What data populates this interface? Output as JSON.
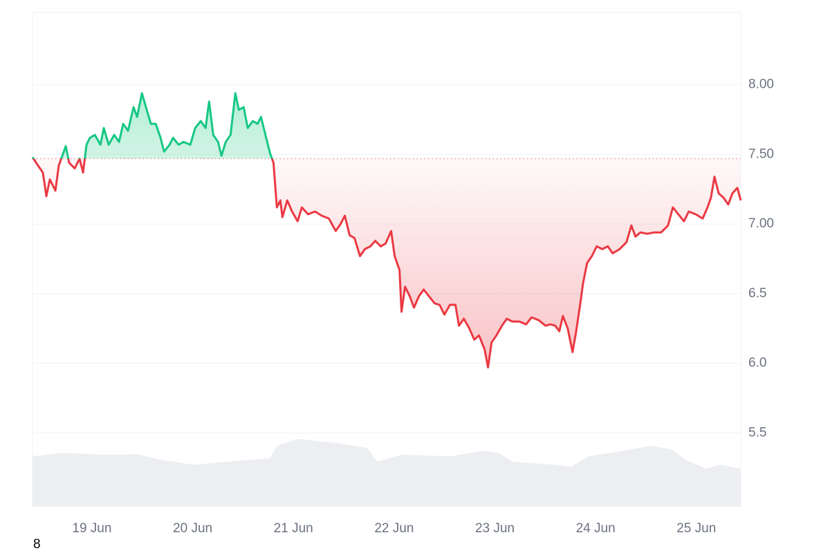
{
  "chart_data": {
    "type": "line",
    "x": [
      18.41,
      18.465,
      18.513,
      18.547,
      18.582,
      18.637,
      18.671,
      18.706,
      18.74,
      18.774,
      18.829,
      18.877,
      18.912,
      18.946,
      18.98,
      19.029,
      19.084,
      19.118,
      19.166,
      19.221,
      19.269,
      19.31,
      19.358,
      19.413,
      19.448,
      19.496,
      19.544,
      19.585,
      19.633,
      19.681,
      19.716,
      19.771,
      19.805,
      19.86,
      19.908,
      19.977,
      20.025,
      20.08,
      20.128,
      20.163,
      20.204,
      20.252,
      20.286,
      20.328,
      20.376,
      20.424,
      20.458,
      20.506,
      20.547,
      20.596,
      20.644,
      20.678,
      20.712,
      20.767,
      20.802,
      20.836,
      20.87,
      20.891,
      20.939,
      20.987,
      21.042,
      21.084,
      21.145,
      21.214,
      21.283,
      21.352,
      21.42,
      21.468,
      21.51,
      21.558,
      21.606,
      21.661,
      21.709,
      21.764,
      21.812,
      21.867,
      21.915,
      21.97,
      22.005,
      22.053,
      22.073,
      22.108,
      22.156,
      22.197,
      22.245,
      22.293,
      22.348,
      22.403,
      22.451,
      22.499,
      22.554,
      22.609,
      22.644,
      22.692,
      22.747,
      22.795,
      22.843,
      22.898,
      22.932,
      22.967,
      23.015,
      23.07,
      23.118,
      23.173,
      23.242,
      23.31,
      23.365,
      23.434,
      23.503,
      23.551,
      23.599,
      23.64,
      23.675,
      23.723,
      23.771,
      23.805,
      23.846,
      23.874,
      23.915,
      23.963,
      24.011,
      24.066,
      24.121,
      24.169,
      24.238,
      24.307,
      24.355,
      24.396,
      24.444,
      24.513,
      24.582,
      24.651,
      24.719,
      24.767,
      24.822,
      24.877,
      24.925,
      24.994,
      25.063,
      25.111,
      25.145,
      25.18,
      25.221,
      25.269,
      25.317,
      25.358,
      25.407,
      25.441
    ],
    "values": [
      7.48,
      7.42,
      7.37,
      7.2,
      7.32,
      7.24,
      7.42,
      7.49,
      7.56,
      7.44,
      7.4,
      7.47,
      7.37,
      7.57,
      7.62,
      7.64,
      7.57,
      7.69,
      7.57,
      7.64,
      7.59,
      7.72,
      7.67,
      7.84,
      7.77,
      7.94,
      7.82,
      7.72,
      7.72,
      7.62,
      7.52,
      7.57,
      7.62,
      7.57,
      7.59,
      7.57,
      7.69,
      7.74,
      7.69,
      7.88,
      7.64,
      7.59,
      7.49,
      7.59,
      7.64,
      7.94,
      7.82,
      7.84,
      7.69,
      7.74,
      7.72,
      7.77,
      7.67,
      7.51,
      7.44,
      7.12,
      7.17,
      7.05,
      7.17,
      7.09,
      7.02,
      7.12,
      7.07,
      7.09,
      7.06,
      7.04,
      6.95,
      7.0,
      7.06,
      6.92,
      6.9,
      6.77,
      6.82,
      6.84,
      6.88,
      6.84,
      6.86,
      6.95,
      6.77,
      6.67,
      6.37,
      6.55,
      6.48,
      6.4,
      6.48,
      6.53,
      6.48,
      6.43,
      6.42,
      6.35,
      6.42,
      6.42,
      6.27,
      6.32,
      6.25,
      6.17,
      6.2,
      6.1,
      5.97,
      6.15,
      6.2,
      6.27,
      6.32,
      6.3,
      6.3,
      6.28,
      6.33,
      6.31,
      6.27,
      6.28,
      6.27,
      6.23,
      6.34,
      6.25,
      6.08,
      6.22,
      6.42,
      6.57,
      6.72,
      6.77,
      6.84,
      6.82,
      6.84,
      6.79,
      6.82,
      6.87,
      6.99,
      6.91,
      6.94,
      6.93,
      6.94,
      6.94,
      6.99,
      7.12,
      7.07,
      7.02,
      7.09,
      7.07,
      7.04,
      7.12,
      7.19,
      7.34,
      7.22,
      7.19,
      7.14,
      7.22,
      7.26,
      7.17
    ],
    "baseline": 7.47,
    "color_up": "#16c784",
    "color_down": "#ea3943",
    "volume": {
      "axis": "y2",
      "color": "#eceef1",
      "x": [
        18.41,
        18.706,
        19.118,
        19.462,
        19.668,
        20.011,
        20.355,
        20.767,
        20.836,
        21.042,
        21.386,
        21.73,
        21.833,
        22.073,
        22.554,
        22.898,
        23.035,
        23.173,
        23.585,
        23.757,
        23.929,
        24.272,
        24.547,
        24.753,
        24.891,
        25.097,
        25.235,
        25.441
      ],
      "values": [
        10.2,
        10.9,
        10.5,
        10.6,
        9.5,
        8.5,
        9.1,
        9.8,
        12.3,
        13.7,
        13.0,
        11.9,
        9.1,
        10.5,
        10.2,
        11.3,
        10.9,
        9.1,
        8.5,
        8.1,
        10.2,
        11.3,
        12.3,
        11.6,
        9.5,
        7.7,
        8.5,
        7.7
      ]
    },
    "y2lim": [
      0,
      100
    ],
    "xlim": [
      18.41,
      25.441
    ],
    "xticks": [
      {
        "value": 19,
        "label": "19 Jun"
      },
      {
        "value": 20,
        "label": "20 Jun"
      },
      {
        "value": 21,
        "label": "21 Jun"
      },
      {
        "value": 22,
        "label": "22 Jun"
      },
      {
        "value": 23,
        "label": "23 Jun"
      },
      {
        "value": 24,
        "label": "24 Jun"
      },
      {
        "value": 25,
        "label": "25 Jun"
      }
    ],
    "ylim": [
      4.97,
      8.52
    ],
    "yticks": [
      5.5,
      {
        "value": 6,
        "label": "6.0"
      },
      6.5,
      {
        "value": 7,
        "label": "7.00"
      },
      {
        "value": 7.5,
        "label": "7.50"
      },
      {
        "value": 8,
        "label": "8.00"
      }
    ],
    "grid": true,
    "footer": "8"
  }
}
